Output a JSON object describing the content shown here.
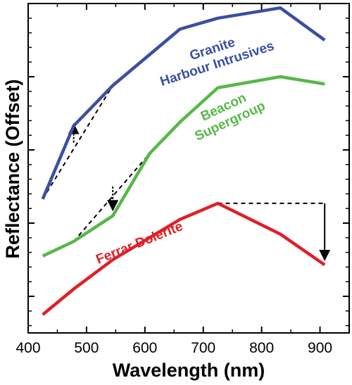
{
  "chart_data": {
    "type": "line",
    "xlabel": "Wavelength (nm)",
    "ylabel": "Reflectance (Offset)",
    "xlim": [
      400,
      950
    ],
    "ylim": [
      0,
      45
    ],
    "x_ticks": [
      400,
      500,
      600,
      700,
      800,
      900
    ],
    "y_major_ticks": [
      5,
      15,
      25,
      35,
      45
    ],
    "y_tick_labels_shown": false,
    "grid": false,
    "legend": "none",
    "series": [
      {
        "name": "Granite Harbour Intrusives",
        "label_lines": [
          "Granite",
          "Harbour Intrusives"
        ],
        "color": "#3a4ea3",
        "x": [
          425,
          478,
          545,
          660,
          725,
          832,
          908
        ],
        "y": [
          18.3,
          28.3,
          33.8,
          41.5,
          43.0,
          44.4,
          40.0
        ]
      },
      {
        "name": "Beacon Supergroup",
        "label_lines": [
          "Beacon",
          "Supergroup"
        ],
        "color": "#56b847",
        "x": [
          425,
          478,
          545,
          608,
          660,
          725,
          832,
          908
        ],
        "y": [
          10.5,
          12.5,
          16.0,
          24.5,
          28.8,
          33.5,
          35.0,
          34.0
        ]
      },
      {
        "name": "Ferrar Dolerite",
        "label_lines": [
          "Ferrar Dolerite"
        ],
        "color": "#e01f26",
        "x": [
          425,
          478,
          545,
          660,
          725,
          832,
          908
        ],
        "y": [
          2.5,
          6.0,
          10.0,
          15.5,
          17.7,
          13.5,
          9.3
        ]
      }
    ],
    "annotations": [
      {
        "series": "Granite Harbour Intrusives",
        "style": "dashed",
        "from": [
          425,
          18.3
        ],
        "to": [
          545,
          33.8
        ],
        "arrow": {
          "x": 478,
          "from_y": 26.0,
          "to_y": 28.3,
          "direction": "up"
        }
      },
      {
        "series": "Beacon Supergroup",
        "style": "dashed",
        "from": [
          478,
          12.5
        ],
        "to": [
          608,
          24.5
        ],
        "arrow": {
          "x": 545,
          "from_y": 20.0,
          "to_y": 17.0,
          "direction": "down"
        }
      },
      {
        "series": "Ferrar Dolerite",
        "style": "dashed",
        "horizontal": {
          "from_x": 725,
          "to_x": 908,
          "y": 17.7
        },
        "arrow": {
          "x": 908,
          "from_y": 17.7,
          "to_y": 10.2,
          "direction": "down"
        }
      }
    ]
  }
}
